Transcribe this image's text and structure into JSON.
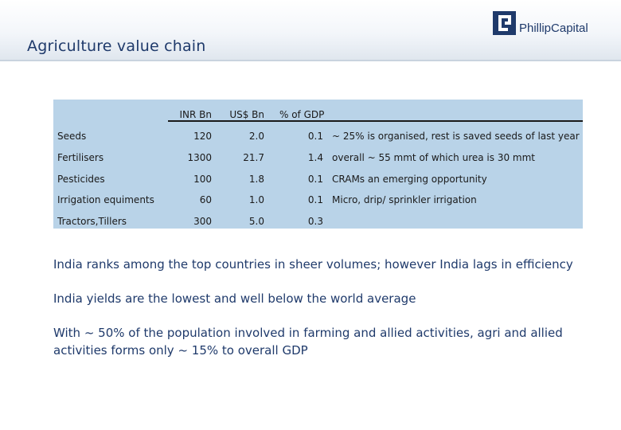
{
  "slide": {
    "title": "Agriculture value chain",
    "logo_text": "PhillipCapital"
  },
  "table": {
    "headers": [
      "INR Bn",
      "US$ Bn",
      "% of GDP"
    ],
    "rows": [
      {
        "name": "Seeds",
        "inr": "120",
        "usd": "2.0",
        "gdp": "0.1",
        "note": "~ 25% is organised, rest is saved seeds of last year"
      },
      {
        "name": "Fertilisers",
        "inr": "1300",
        "usd": "21.7",
        "gdp": "1.4",
        "note": "overall ~ 55 mmt of which urea is 30 mmt"
      },
      {
        "name": "Pesticides",
        "inr": "100",
        "usd": "1.8",
        "gdp": "0.1",
        "note": "CRAMs an emerging opportunity"
      },
      {
        "name": "Irrigation equiments",
        "inr": "60",
        "usd": "1.0",
        "gdp": "0.1",
        "note": "Micro, drip/ sprinkler irrigation"
      },
      {
        "name": "Tractors,Tillers",
        "inr": "300",
        "usd": "5.0",
        "gdp": "0.3",
        "note": ""
      }
    ]
  },
  "bullets": [
    "India ranks among the top countries in sheer volumes; however India lags in efficiency",
    "India yields are the lowest and well below the world average",
    "With ~ 50% of the population involved in farming and allied activities, agri and allied activities forms only ~ 15% to overall GDP"
  ],
  "colors": {
    "title": "#1f3a6b",
    "table_bg": "#b9d3e8",
    "brand": "#1f3a6b"
  }
}
